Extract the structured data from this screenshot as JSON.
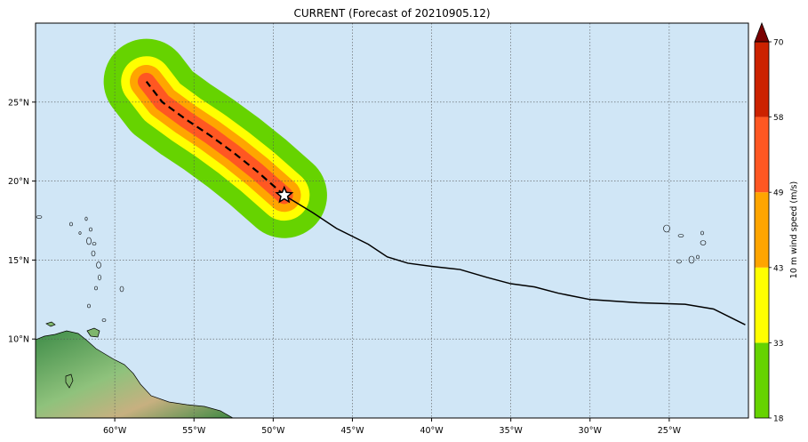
{
  "title": "CURRENT (Forecast of 20210905.12)",
  "map": {
    "lon_range": [
      -65,
      -20
    ],
    "lat_range": [
      5,
      30
    ],
    "lon_ticks": [
      {
        "lon": -60,
        "label": "60°W"
      },
      {
        "lon": -55,
        "label": "55°W"
      },
      {
        "lon": -50,
        "label": "50°W"
      },
      {
        "lon": -45,
        "label": "45°W"
      },
      {
        "lon": -40,
        "label": "40°W"
      },
      {
        "lon": -35,
        "label": "35°W"
      },
      {
        "lon": -30,
        "label": "30°W"
      },
      {
        "lon": -25,
        "label": "25°W"
      }
    ],
    "lat_ticks": [
      {
        "lat": 25,
        "label": "25°N"
      },
      {
        "lat": 20,
        "label": "20°N"
      },
      {
        "lat": 15,
        "label": "15°N"
      },
      {
        "lat": 10,
        "label": "10°N"
      }
    ],
    "colors": {
      "ocean": "#d0e6f6",
      "grid": "#555555",
      "land_low": "#4f9a54",
      "land_mid": "#9cc98a",
      "land_high": "#c9a97e",
      "track": "#000000"
    },
    "past_track": [
      [
        -20.2,
        10.9
      ],
      [
        -22.2,
        11.9
      ],
      [
        -24.0,
        12.2
      ],
      [
        -27.0,
        12.3
      ],
      [
        -30.0,
        12.5
      ],
      [
        -32.0,
        12.9
      ],
      [
        -33.5,
        13.3
      ],
      [
        -35.0,
        13.5
      ],
      [
        -36.5,
        13.9
      ],
      [
        -38.2,
        14.4
      ],
      [
        -40.0,
        14.6
      ],
      [
        -41.5,
        14.8
      ],
      [
        -42.8,
        15.2
      ],
      [
        -44.0,
        16.0
      ],
      [
        -46.0,
        17.0
      ],
      [
        -47.5,
        18.0
      ],
      [
        -49.3,
        19.1
      ]
    ],
    "forecast_track": [
      [
        -49.3,
        19.1
      ],
      [
        -51.0,
        20.6
      ],
      [
        -52.5,
        21.8
      ],
      [
        -54.0,
        22.9
      ],
      [
        -55.5,
        23.9
      ],
      [
        -57.0,
        25.0
      ],
      [
        -58.0,
        26.3
      ]
    ],
    "current_position": {
      "lon": -49.3,
      "lat": 19.1,
      "icon": "star-icon"
    },
    "swath_layers": [
      {
        "speed": 18,
        "color": "#66d300",
        "halfwidth_deg": 2.7
      },
      {
        "speed": 33,
        "color": "#ffff00",
        "halfwidth_deg": 1.6
      },
      {
        "speed": 43,
        "color": "#ffa500",
        "halfwidth_deg": 1.05
      },
      {
        "speed": 49,
        "color": "#ff5722",
        "halfwidth_deg": 0.55
      }
    ]
  },
  "colorbar": {
    "label": "10 m wind speed (m/s)",
    "segments": [
      {
        "from": 18,
        "to": 33,
        "color": "#66d300"
      },
      {
        "from": 33,
        "to": 43,
        "color": "#ffff00"
      },
      {
        "from": 43,
        "to": 49,
        "color": "#ffa500"
      },
      {
        "from": 49,
        "to": 58,
        "color": "#ff5722"
      },
      {
        "from": 58,
        "to": 70,
        "color": "#cc2200"
      }
    ],
    "extend_color": "#7a0000",
    "ticks": [
      "18",
      "33",
      "43",
      "49",
      "58",
      "70"
    ]
  }
}
